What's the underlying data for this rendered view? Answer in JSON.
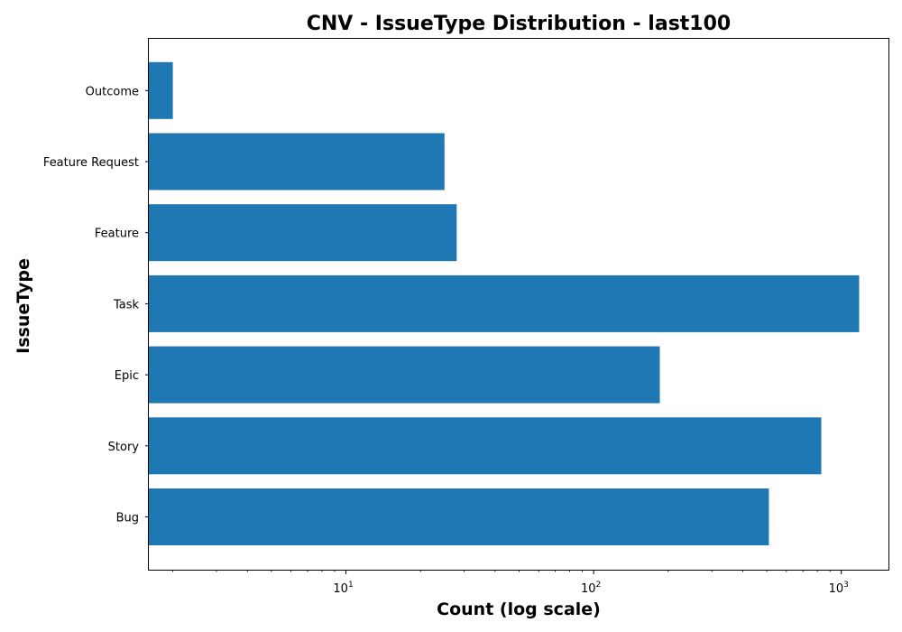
{
  "chart_data": {
    "type": "bar",
    "orientation": "horizontal",
    "title": "CNV - IssueType Distribution - last100",
    "xlabel": "Count (log scale)",
    "ylabel": "IssueType",
    "xscale": "log",
    "xlim": [
      1.6,
      1550
    ],
    "categories": [
      "Bug",
      "Story",
      "Epic",
      "Task",
      "Feature",
      "Feature Request",
      "Outcome"
    ],
    "values": [
      510,
      830,
      185,
      1180,
      28,
      25,
      2
    ],
    "xticks": [
      {
        "value": 10,
        "base": "10",
        "exp": "1"
      },
      {
        "value": 100,
        "base": "10",
        "exp": "2"
      },
      {
        "value": 1000,
        "base": "10",
        "exp": "3"
      }
    ],
    "bar_color": "#1f77b4",
    "grid": false,
    "legend": "none"
  }
}
